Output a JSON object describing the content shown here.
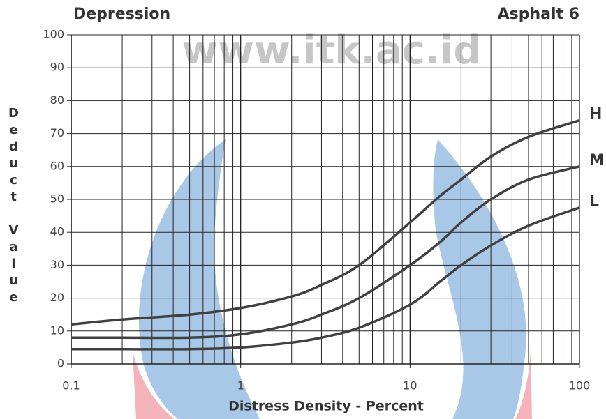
{
  "chart_data": {
    "type": "line",
    "title": "Depression",
    "subtitle": "Asphalt 6",
    "watermark": "www.itk.ac.id",
    "x_label": "Distress Density - Percent",
    "y_label": "Deduct Value",
    "log_x": true,
    "grid": true,
    "xlim": [
      0.1,
      100
    ],
    "xticks": [
      0.1,
      1,
      10,
      100
    ],
    "ylim": [
      0,
      100
    ],
    "yticks": [
      0,
      10,
      20,
      30,
      40,
      50,
      60,
      70,
      80,
      90,
      100
    ],
    "x": [
      0.1,
      0.2,
      0.5,
      1,
      2,
      3,
      5,
      10,
      15,
      20,
      30,
      50,
      100
    ],
    "series": [
      {
        "name": "H",
        "color": "#404040",
        "values": [
          12,
          13.5,
          15,
          17,
          20.5,
          24,
          30,
          43,
          51,
          56,
          63,
          69,
          74
        ]
      },
      {
        "name": "M",
        "color": "#404040",
        "values": [
          8,
          8,
          8,
          9,
          12,
          15,
          20,
          30,
          37,
          43,
          50,
          56,
          60
        ]
      },
      {
        "name": "L",
        "color": "#404040",
        "values": [
          4.5,
          4.5,
          4.5,
          5,
          6.5,
          8,
          11,
          18,
          25,
          30,
          36,
          42,
          47.5
        ]
      }
    ]
  }
}
